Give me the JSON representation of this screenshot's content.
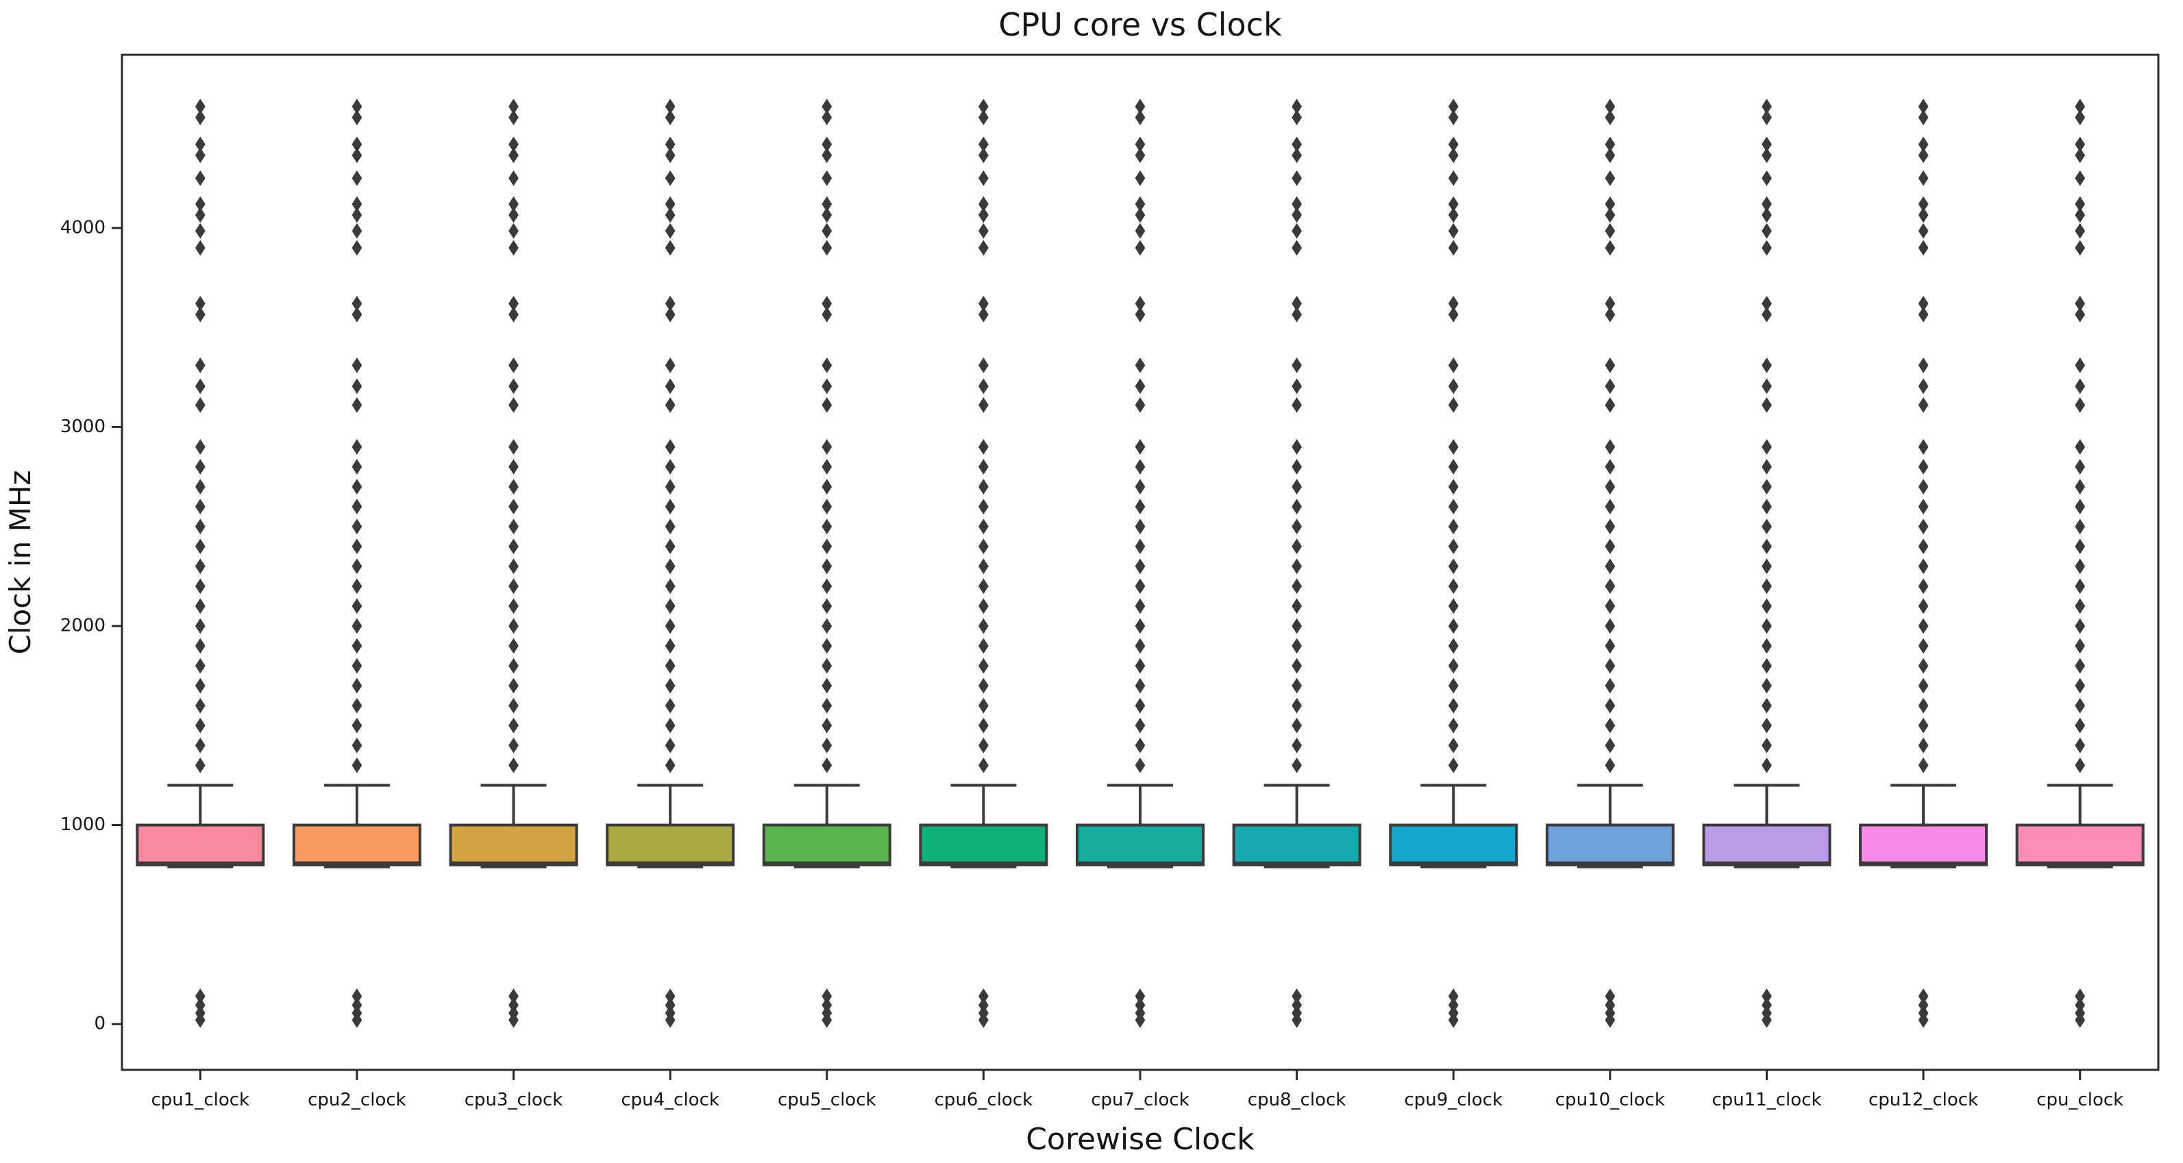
{
  "figure": {
    "background_color": "#ffffff",
    "spine_color": "#2b2b2b",
    "box_line_color": "#3a3a3a",
    "outlier_color": "#3a3a3a",
    "text_color": "#151515"
  },
  "chart_data": {
    "type": "boxplot",
    "title": "CPU core vs Clock",
    "xlabel": "Corewise Clock",
    "ylabel": "Clock in MHz",
    "ylim": [
      -230,
      4870
    ],
    "yticks": [
      0,
      1000,
      2000,
      3000,
      4000
    ],
    "ytick_labels": [
      "0",
      "1000",
      "2000",
      "3000",
      "4000"
    ],
    "grid": false,
    "legend": "none",
    "categories": [
      "cpu1_clock",
      "cpu2_clock",
      "cpu3_clock",
      "cpu4_clock",
      "cpu5_clock",
      "cpu6_clock",
      "cpu7_clock",
      "cpu8_clock",
      "cpu9_clock",
      "cpu10_clock",
      "cpu11_clock",
      "cpu12_clock",
      "cpu_clock"
    ],
    "shared_box_stats": {
      "whisker_low": 790,
      "q1": 800,
      "median": 810,
      "q3": 1000,
      "whisker_high": 1200
    },
    "shared_outliers_high": [
      4610,
      4555,
      4420,
      4365,
      4250,
      4120,
      4065,
      3985,
      3900,
      3620,
      3565,
      3310,
      3205,
      3110,
      2900,
      2800,
      2700,
      2600,
      2500,
      2400,
      2300,
      2200,
      2100,
      2000,
      1900,
      1800,
      1700,
      1600,
      1500,
      1400,
      1300
    ],
    "shared_outliers_low": [
      140,
      95,
      55,
      20
    ],
    "series": [
      {
        "category": "cpu1_clock",
        "box_color": "#f7899c"
      },
      {
        "category": "cpu2_clock",
        "box_color": "#f69a5e"
      },
      {
        "category": "cpu3_clock",
        "box_color": "#d4a342"
      },
      {
        "category": "cpu4_clock",
        "box_color": "#a9a944"
      },
      {
        "category": "cpu5_clock",
        "box_color": "#57b44a"
      },
      {
        "category": "cpu6_clock",
        "box_color": "#10b176"
      },
      {
        "category": "cpu7_clock",
        "box_color": "#15ae9d"
      },
      {
        "category": "cpu8_clock",
        "box_color": "#14aaae"
      },
      {
        "category": "cpu9_clock",
        "box_color": "#13a7c9"
      },
      {
        "category": "cpu10_clock",
        "box_color": "#6fa3e0"
      },
      {
        "category": "cpu11_clock",
        "box_color": "#bb9ae6"
      },
      {
        "category": "cpu12_clock",
        "box_color": "#f989e6"
      },
      {
        "category": "cpu_clock",
        "box_color": "#fb8cb5"
      }
    ]
  }
}
